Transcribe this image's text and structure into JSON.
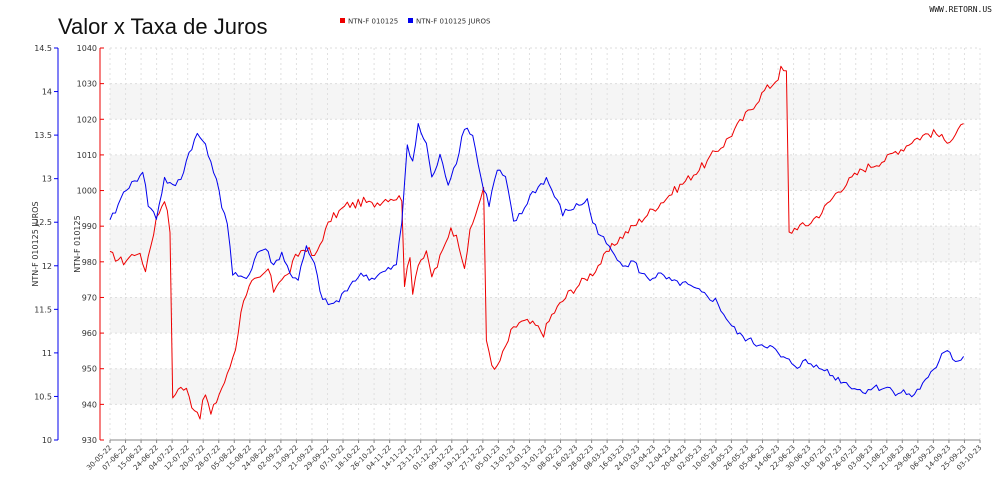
{
  "page": {
    "source": "WWW.RETORN.US"
  },
  "chart_data": {
    "type": "line",
    "title": "Valor x Taxa de Juros",
    "legend_position": "top-center",
    "grid": true,
    "left_axis": {
      "label": "NTN-F 010125 JUROS",
      "min": 10,
      "max": 14.5,
      "ticks": [
        "10",
        "10.5",
        "11",
        "11.5",
        "12",
        "12.5",
        "13",
        "13.5",
        "14",
        "14.5"
      ],
      "color": "#0000ee"
    },
    "right_axis": {
      "label": "NTN-F 010125",
      "min": 930,
      "max": 1040,
      "ticks": [
        "930",
        "940",
        "950",
        "960",
        "970",
        "980",
        "990",
        "1000",
        "1010",
        "1020",
        "1030",
        "1040"
      ],
      "color": "#ee0000"
    },
    "x": {
      "n_points": 320,
      "tick_labels": [
        "30-05-22",
        "07-06-22",
        "15-06-22",
        "24-06-22",
        "04-07-22",
        "12-07-22",
        "20-07-22",
        "28-07-22",
        "05-08-22",
        "15-08-22",
        "24-08-22",
        "02-09-22",
        "13-09-22",
        "21-09-22",
        "29-09-22",
        "07-10-22",
        "18-10-22",
        "26-10-22",
        "04-11-22",
        "14-11-22",
        "23-11-22",
        "01-12-22",
        "09-12-22",
        "19-12-22",
        "27-12-22",
        "05-01-23",
        "13-01-23",
        "23-01-23",
        "31-01-23",
        "08-02-23",
        "16-02-23",
        "28-02-23",
        "08-03-23",
        "16-03-23",
        "24-03-23",
        "03-04-23",
        "12-04-23",
        "20-04-23",
        "02-05-23",
        "10-05-23",
        "18-05-23",
        "26-05-23",
        "05-06-23",
        "14-06-23",
        "22-06-23",
        "30-06-23",
        "10-07-23",
        "18-07-23",
        "26-07-23",
        "03-08-23",
        "11-08-23",
        "21-08-23",
        "29-08-23",
        "06-09-23",
        "14-09-23",
        "25-09-23",
        "03-10-23"
      ]
    },
    "series": [
      {
        "name": "NTN-F 010125",
        "axis": "right",
        "color": "#ee0000",
        "keyframes": [
          [
            0,
            982
          ],
          [
            5,
            980
          ],
          [
            10,
            983
          ],
          [
            13,
            978
          ],
          [
            17,
            992
          ],
          [
            20,
            998
          ],
          [
            22,
            989
          ],
          [
            23,
            941
          ],
          [
            25,
            945
          ],
          [
            28,
            944
          ],
          [
            30,
            940
          ],
          [
            33,
            937
          ],
          [
            35,
            943
          ],
          [
            37,
            937
          ],
          [
            40,
            943
          ],
          [
            43,
            948
          ],
          [
            46,
            956
          ],
          [
            49,
            970
          ],
          [
            52,
            974
          ],
          [
            55,
            975
          ],
          [
            58,
            978
          ],
          [
            60,
            972
          ],
          [
            62,
            975
          ],
          [
            65,
            976
          ],
          [
            68,
            981
          ],
          [
            70,
            983
          ],
          [
            72,
            984
          ],
          [
            75,
            981
          ],
          [
            78,
            987
          ],
          [
            81,
            992
          ],
          [
            84,
            994
          ],
          [
            87,
            996
          ],
          [
            90,
            996
          ],
          [
            93,
            997
          ],
          [
            96,
            996
          ],
          [
            99,
            997
          ],
          [
            102,
            998
          ],
          [
            105,
            998
          ],
          [
            107,
            998
          ],
          [
            108,
            974
          ],
          [
            110,
            981
          ],
          [
            111,
            972
          ],
          [
            113,
            980
          ],
          [
            116,
            982
          ],
          [
            118,
            976
          ],
          [
            120,
            979
          ],
          [
            123,
            985
          ],
          [
            125,
            990
          ],
          [
            128,
            985
          ],
          [
            130,
            979
          ],
          [
            132,
            988
          ],
          [
            135,
            996
          ],
          [
            137,
            1000
          ],
          [
            138,
            958
          ],
          [
            141,
            949
          ],
          [
            144,
            954
          ],
          [
            147,
            960
          ],
          [
            150,
            963
          ],
          [
            153,
            963
          ],
          [
            156,
            962
          ],
          [
            159,
            960
          ],
          [
            162,
            965
          ],
          [
            165,
            968
          ],
          [
            168,
            971
          ],
          [
            171,
            973
          ],
          [
            174,
            975
          ],
          [
            177,
            977
          ],
          [
            180,
            980
          ],
          [
            183,
            983
          ],
          [
            186,
            986
          ],
          [
            189,
            988
          ],
          [
            192,
            990
          ],
          [
            195,
            992
          ],
          [
            198,
            994
          ],
          [
            201,
            996
          ],
          [
            204,
            998
          ],
          [
            207,
            1000
          ],
          [
            210,
            1002
          ],
          [
            213,
            1004
          ],
          [
            216,
            1006
          ],
          [
            219,
            1008
          ],
          [
            222,
            1011
          ],
          [
            225,
            1013
          ],
          [
            228,
            1016
          ],
          [
            231,
            1019
          ],
          [
            234,
            1022
          ],
          [
            237,
            1025
          ],
          [
            240,
            1028
          ],
          [
            243,
            1030
          ],
          [
            245,
            1032
          ],
          [
            246,
            1034
          ],
          [
            248,
            1033
          ],
          [
            249,
            988
          ],
          [
            252,
            990
          ],
          [
            255,
            990
          ],
          [
            258,
            992
          ],
          [
            261,
            994
          ],
          [
            264,
            997
          ],
          [
            267,
            1000
          ],
          [
            270,
            1002
          ],
          [
            273,
            1004
          ],
          [
            276,
            1006
          ],
          [
            279,
            1007
          ],
          [
            282,
            1008
          ],
          [
            285,
            1009
          ],
          [
            288,
            1011
          ],
          [
            291,
            1012
          ],
          [
            294,
            1014
          ],
          [
            297,
            1015
          ],
          [
            300,
            1016
          ],
          [
            303,
            1016
          ],
          [
            306,
            1014
          ],
          [
            309,
            1015
          ],
          [
            311,
            1017
          ],
          [
            313,
            1018
          ]
        ]
      },
      {
        "name": "NTN-F 010125 JUROS",
        "axis": "left",
        "color": "#0000ee",
        "keyframes": [
          [
            0,
            12.5
          ],
          [
            3,
            12.7
          ],
          [
            6,
            12.9
          ],
          [
            9,
            12.95
          ],
          [
            12,
            13.1
          ],
          [
            14,
            12.7
          ],
          [
            17,
            12.55
          ],
          [
            20,
            13.0
          ],
          [
            23,
            12.9
          ],
          [
            26,
            13.0
          ],
          [
            29,
            13.3
          ],
          [
            32,
            13.5
          ],
          [
            35,
            13.4
          ],
          [
            38,
            13.1
          ],
          [
            41,
            12.7
          ],
          [
            43,
            12.5
          ],
          [
            45,
            11.9
          ],
          [
            48,
            11.85
          ],
          [
            51,
            11.9
          ],
          [
            54,
            12.15
          ],
          [
            57,
            12.2
          ],
          [
            60,
            12.0
          ],
          [
            63,
            12.15
          ],
          [
            66,
            11.9
          ],
          [
            69,
            11.85
          ],
          [
            72,
            12.2
          ],
          [
            75,
            12.0
          ],
          [
            78,
            11.6
          ],
          [
            81,
            11.55
          ],
          [
            84,
            11.6
          ],
          [
            87,
            11.75
          ],
          [
            90,
            11.85
          ],
          [
            93,
            11.9
          ],
          [
            96,
            11.85
          ],
          [
            99,
            11.9
          ],
          [
            102,
            11.95
          ],
          [
            105,
            12.0
          ],
          [
            107,
            12.5
          ],
          [
            109,
            13.4
          ],
          [
            111,
            13.2
          ],
          [
            113,
            13.6
          ],
          [
            116,
            13.4
          ],
          [
            118,
            13.0
          ],
          [
            121,
            13.25
          ],
          [
            124,
            12.95
          ],
          [
            127,
            13.2
          ],
          [
            130,
            13.6
          ],
          [
            133,
            13.5
          ],
          [
            136,
            13.0
          ],
          [
            139,
            12.7
          ],
          [
            142,
            13.1
          ],
          [
            145,
            13.0
          ],
          [
            148,
            12.5
          ],
          [
            151,
            12.6
          ],
          [
            154,
            12.8
          ],
          [
            157,
            12.9
          ],
          [
            160,
            13.0
          ],
          [
            163,
            12.8
          ],
          [
            166,
            12.6
          ],
          [
            169,
            12.65
          ],
          [
            172,
            12.7
          ],
          [
            175,
            12.75
          ],
          [
            177,
            12.5
          ],
          [
            180,
            12.35
          ],
          [
            183,
            12.2
          ],
          [
            186,
            12.1
          ],
          [
            189,
            12.0
          ],
          [
            192,
            12.05
          ],
          [
            195,
            11.9
          ],
          [
            198,
            11.85
          ],
          [
            201,
            11.9
          ],
          [
            204,
            11.85
          ],
          [
            207,
            11.8
          ],
          [
            210,
            11.8
          ],
          [
            213,
            11.75
          ],
          [
            216,
            11.7
          ],
          [
            219,
            11.65
          ],
          [
            222,
            11.6
          ],
          [
            225,
            11.45
          ],
          [
            228,
            11.3
          ],
          [
            231,
            11.2
          ],
          [
            234,
            11.15
          ],
          [
            237,
            11.1
          ],
          [
            240,
            11.1
          ],
          [
            243,
            11.05
          ],
          [
            246,
            10.95
          ],
          [
            249,
            10.9
          ],
          [
            252,
            10.85
          ],
          [
            255,
            10.9
          ],
          [
            258,
            10.85
          ],
          [
            261,
            10.85
          ],
          [
            264,
            10.75
          ],
          [
            267,
            10.7
          ],
          [
            270,
            10.65
          ],
          [
            273,
            10.6
          ],
          [
            276,
            10.55
          ],
          [
            279,
            10.6
          ],
          [
            282,
            10.6
          ],
          [
            285,
            10.6
          ],
          [
            288,
            10.55
          ],
          [
            291,
            10.55
          ],
          [
            294,
            10.5
          ],
          [
            297,
            10.6
          ],
          [
            300,
            10.7
          ],
          [
            303,
            10.85
          ],
          [
            305,
            11.0
          ],
          [
            307,
            11.05
          ],
          [
            309,
            10.95
          ],
          [
            311,
            10.9
          ],
          [
            313,
            10.95
          ]
        ]
      }
    ]
  }
}
